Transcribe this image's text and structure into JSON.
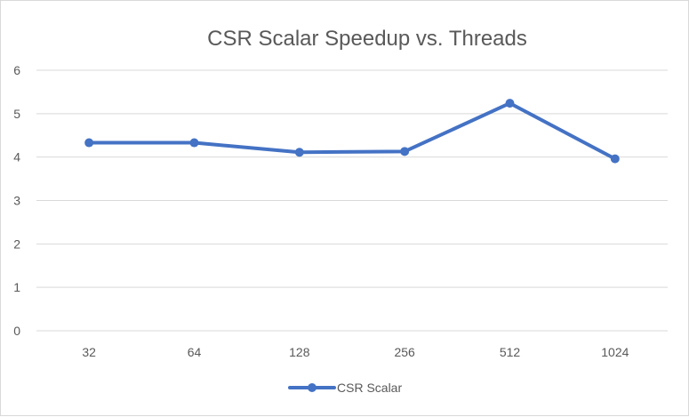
{
  "chart_data": {
    "type": "line",
    "title": "CSR Scalar Speedup  vs. Threads",
    "xlabel": "",
    "ylabel": "",
    "categories": [
      "32",
      "64",
      "128",
      "256",
      "512",
      "1024"
    ],
    "series": [
      {
        "name": "CSR Scalar",
        "values": [
          4.33,
          4.33,
          4.11,
          4.13,
          5.24,
          3.96
        ],
        "color": "#4472c4"
      }
    ],
    "ylim": [
      0,
      6
    ],
    "yticks": [
      "0",
      "1",
      "2",
      "3",
      "4",
      "5",
      "6"
    ],
    "grid": true,
    "legend": "bottom"
  }
}
